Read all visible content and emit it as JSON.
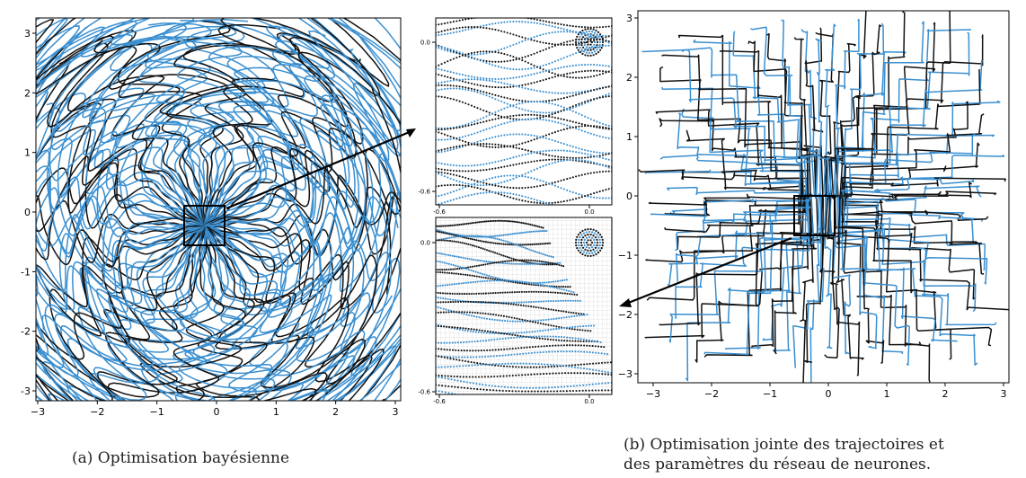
{
  "panel_a": {
    "x_ticks": [
      "−3",
      "−2",
      "−1",
      "0",
      "1",
      "2",
      "3"
    ],
    "y_ticks": [
      "3",
      "2",
      "1",
      "0",
      "-1",
      "-2",
      "-3"
    ],
    "caption": "(a) Optimisation bayésienne"
  },
  "zoom_top": {
    "x_ticks": [
      "-0.6",
      "0.0"
    ],
    "y_ticks": [
      "0.0",
      "-0.6"
    ]
  },
  "zoom_bottom": {
    "x_ticks": [
      "-0.6",
      "0.0"
    ],
    "y_ticks": [
      "0.0",
      "-0.6"
    ]
  },
  "panel_b": {
    "x_ticks": [
      "−3",
      "−2",
      "−1",
      "0",
      "1",
      "2",
      "3"
    ],
    "y_ticks": [
      "3",
      "2",
      "1",
      "0",
      "−1",
      "−2",
      "−3"
    ],
    "caption_line1": "(b) Optimisation jointe des trajectoires et",
    "caption_line2": "des paramètres du réseau de neurones."
  },
  "colors": {
    "blue": "#3a8fd0",
    "black": "#111111"
  }
}
